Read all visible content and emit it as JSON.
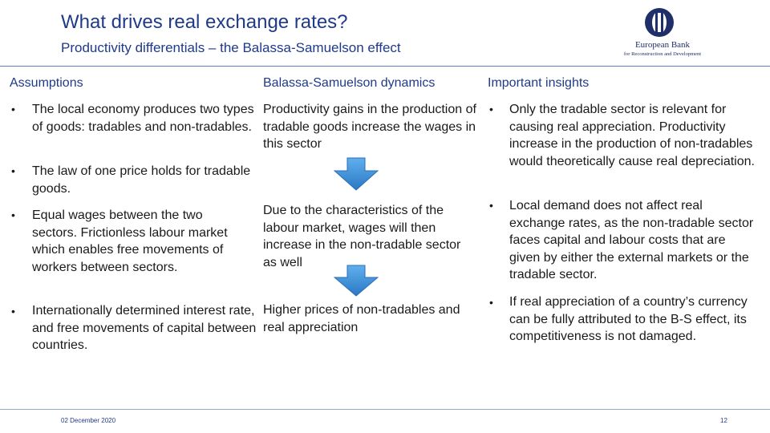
{
  "header": {
    "title": "What drives real exchange rates?",
    "subtitle": "Productivity differentials – the Balassa-Samuelson effect",
    "logo_line1": "European Bank",
    "logo_line2": "for Reconstruction and Development",
    "brand_color": "#1f3a8a"
  },
  "columns": {
    "assumptions": {
      "heading": "Assumptions",
      "items": [
        "The local economy produces two types of goods: tradables and non-tradables.",
        "The law of one price holds for tradable goods.",
        "Equal wages between the two sectors. Frictionless labour market which enables free movements of workers between sectors.",
        "Internationally determined interest rate, and free movements of capital between countries."
      ]
    },
    "dynamics": {
      "heading": "Balassa-Samuelson dynamics",
      "steps": [
        "Productivity gains in the production of tradable goods increase the wages in this sector",
        "Due to the characteristics of the labour market, wages will then increase in the non-tradable sector as well",
        "Higher prices of non-tradables and real appreciation"
      ],
      "arrow_icon": "down-arrow-icon",
      "arrow_color": "#3d8fd6"
    },
    "insights": {
      "heading": "Important insights",
      "items": [
        "Only the tradable sector is relevant for causing real appreciation. Productivity increase in the production of non-tradables would theoretically cause real depreciation.",
        "Local demand does not affect real exchange rates, as the non-tradable sector faces capital and labour costs that are given by either the external markets or the tradable sector.",
        "If real appreciation of a country’s currency can be fully attributed to the B-S effect, its competitiveness is not damaged."
      ]
    }
  },
  "footer": {
    "date": "02 December 2020",
    "page": "12"
  }
}
